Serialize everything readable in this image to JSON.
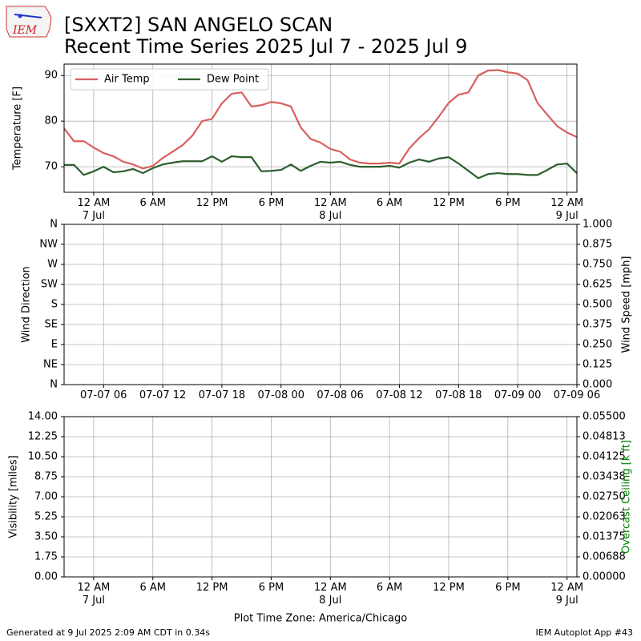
{
  "header": {
    "title_line1": "[SXXT2] SAN ANGELO SCAN",
    "title_line2": "Recent Time Series 2025 Jul 7 - 2025 Jul 9",
    "logo_text": "IEM"
  },
  "chart_data": [
    {
      "type": "line",
      "ylabel": "Temperature [F]",
      "x": [
        "2025-07-06T21:00",
        "2025-07-06T22:00",
        "2025-07-06T23:00",
        "2025-07-07T00:00",
        "2025-07-07T01:00",
        "2025-07-07T02:00",
        "2025-07-07T03:00",
        "2025-07-07T04:00",
        "2025-07-07T05:00",
        "2025-07-07T06:00",
        "2025-07-07T07:00",
        "2025-07-07T08:00",
        "2025-07-07T09:00",
        "2025-07-07T10:00",
        "2025-07-07T11:00",
        "2025-07-07T12:00",
        "2025-07-07T13:00",
        "2025-07-07T14:00",
        "2025-07-07T15:00",
        "2025-07-07T16:00",
        "2025-07-07T17:00",
        "2025-07-07T18:00",
        "2025-07-07T19:00",
        "2025-07-07T20:00",
        "2025-07-07T21:00",
        "2025-07-07T22:00",
        "2025-07-07T23:00",
        "2025-07-08T00:00",
        "2025-07-08T01:00",
        "2025-07-08T02:00",
        "2025-07-08T03:00",
        "2025-07-08T04:00",
        "2025-07-08T05:00",
        "2025-07-08T06:00",
        "2025-07-08T07:00",
        "2025-07-08T08:00",
        "2025-07-08T09:00",
        "2025-07-08T10:00",
        "2025-07-08T11:00",
        "2025-07-08T12:00",
        "2025-07-08T13:00",
        "2025-07-08T14:00",
        "2025-07-08T15:00",
        "2025-07-08T16:00",
        "2025-07-08T17:00",
        "2025-07-08T18:00",
        "2025-07-08T19:00",
        "2025-07-08T20:00",
        "2025-07-08T21:00",
        "2025-07-08T22:00",
        "2025-07-08T23:00",
        "2025-07-09T00:00",
        "2025-07-09T01:00"
      ],
      "series": [
        {
          "name": "Air Temp",
          "color": "#d95f5f",
          "values": [
            78.4,
            75.6,
            75.6,
            74.2,
            73.0,
            72.3,
            71.1,
            70.5,
            69.6,
            70.2,
            71.9,
            73.3,
            74.7,
            76.8,
            80.0,
            80.5,
            83.9,
            86.0,
            86.3,
            83.2,
            83.5,
            84.2,
            83.9,
            83.2,
            78.6,
            76.1,
            75.3,
            73.9,
            73.3,
            71.6,
            70.9,
            70.7,
            70.7,
            70.9,
            70.7,
            74.0,
            76.3,
            78.2,
            81.0,
            84.0,
            85.8,
            86.3,
            90.0,
            91.1,
            91.2,
            90.7,
            90.4,
            89.0,
            84.0,
            81.4,
            78.9,
            77.5,
            76.5
          ]
        },
        {
          "name": "Dew Point",
          "color": "#2e5e2e",
          "values": [
            70.4,
            70.4,
            68.2,
            69.0,
            70.0,
            68.8,
            69.0,
            69.5,
            68.6,
            69.7,
            70.5,
            70.9,
            71.2,
            71.2,
            71.2,
            72.3,
            71.1,
            72.3,
            72.1,
            72.1,
            69.0,
            69.1,
            69.3,
            70.5,
            69.1,
            70.2,
            71.1,
            70.9,
            71.1,
            70.4,
            70.0,
            70.0,
            70.0,
            70.2,
            69.8,
            70.9,
            71.6,
            71.1,
            71.8,
            72.1,
            70.7,
            69.1,
            67.5,
            68.4,
            68.6,
            68.4,
            68.4,
            68.2,
            68.2,
            69.3,
            70.5,
            70.7,
            68.6
          ]
        }
      ],
      "xlim": [
        "2025-07-06T21:00",
        "2025-07-09T01:00"
      ],
      "xticks": [
        {
          "value": "2025-07-07T00:00",
          "label": "12 AM\n7 Jul"
        },
        {
          "value": "2025-07-07T06:00",
          "label": "6 AM"
        },
        {
          "value": "2025-07-07T12:00",
          "label": "12 PM"
        },
        {
          "value": "2025-07-07T18:00",
          "label": "6 PM"
        },
        {
          "value": "2025-07-08T00:00",
          "label": "12 AM\n8 Jul"
        },
        {
          "value": "2025-07-08T06:00",
          "label": "6 AM"
        },
        {
          "value": "2025-07-08T12:00",
          "label": "12 PM"
        },
        {
          "value": "2025-07-08T18:00",
          "label": "6 PM"
        },
        {
          "value": "2025-07-09T00:00",
          "label": "12 AM\n9 Jul"
        }
      ],
      "ylim": [
        64.4,
        92.5
      ],
      "yticks": [
        70,
        80,
        90
      ],
      "grid": true,
      "legend": "upper left"
    },
    {
      "type": "line",
      "ylabel": "Wind Direction",
      "y2label": "Wind Speed [mph]",
      "series": [],
      "xlim": [
        "2025-07-07T02:00",
        "2025-07-09T06:00"
      ],
      "xticks": [
        {
          "value": "2025-07-07T06:00",
          "label": "07-07 06"
        },
        {
          "value": "2025-07-07T12:00",
          "label": "07-07 12"
        },
        {
          "value": "2025-07-07T18:00",
          "label": "07-07 18"
        },
        {
          "value": "2025-07-08T00:00",
          "label": "07-08 00"
        },
        {
          "value": "2025-07-08T06:00",
          "label": "07-08 06"
        },
        {
          "value": "2025-07-08T12:00",
          "label": "07-08 12"
        },
        {
          "value": "2025-07-08T18:00",
          "label": "07-08 18"
        },
        {
          "value": "2025-07-09T00:00",
          "label": "07-09 00"
        },
        {
          "value": "2025-07-09T06:00",
          "label": "07-09 06"
        }
      ],
      "ylim": [
        0,
        360
      ],
      "yticks": [
        {
          "value": 0,
          "label": "N"
        },
        {
          "value": 45,
          "label": "NE"
        },
        {
          "value": 90,
          "label": "E"
        },
        {
          "value": 135,
          "label": "SE"
        },
        {
          "value": 180,
          "label": "S"
        },
        {
          "value": 225,
          "label": "SW"
        },
        {
          "value": 270,
          "label": "W"
        },
        {
          "value": 315,
          "label": "NW"
        },
        {
          "value": 360,
          "label": "N"
        }
      ],
      "y2lim": [
        0,
        1
      ],
      "y2ticks": [
        {
          "value": 0,
          "label": "0.000"
        },
        {
          "value": 0.125,
          "label": "0.125"
        },
        {
          "value": 0.25,
          "label": "0.250"
        },
        {
          "value": 0.375,
          "label": "0.375"
        },
        {
          "value": 0.5,
          "label": "0.500"
        },
        {
          "value": 0.625,
          "label": "0.625"
        },
        {
          "value": 0.75,
          "label": "0.750"
        },
        {
          "value": 0.875,
          "label": "0.875"
        },
        {
          "value": 1,
          "label": "1.000"
        }
      ],
      "grid": true
    },
    {
      "type": "line",
      "ylabel": "Visibility [miles]",
      "y2label": "Overcast Ceiling [k ft]",
      "y2label_color": "green",
      "xlabel": "Plot Time Zone: America/Chicago",
      "series": [],
      "xlim": [
        "2025-07-06T21:00",
        "2025-07-09T01:00"
      ],
      "xticks": [
        {
          "value": "2025-07-07T00:00",
          "label": "12 AM\n7 Jul"
        },
        {
          "value": "2025-07-07T06:00",
          "label": "6 AM"
        },
        {
          "value": "2025-07-07T12:00",
          "label": "12 PM"
        },
        {
          "value": "2025-07-07T18:00",
          "label": "6 PM"
        },
        {
          "value": "2025-07-08T00:00",
          "label": "12 AM\n8 Jul"
        },
        {
          "value": "2025-07-08T06:00",
          "label": "6 AM"
        },
        {
          "value": "2025-07-08T12:00",
          "label": "12 PM"
        },
        {
          "value": "2025-07-08T18:00",
          "label": "6 PM"
        },
        {
          "value": "2025-07-09T00:00",
          "label": "12 AM\n9 Jul"
        }
      ],
      "ylim": [
        0,
        14
      ],
      "yticks": [
        {
          "value": 0,
          "label": "0.00"
        },
        {
          "value": 1.75,
          "label": "1.75"
        },
        {
          "value": 3.5,
          "label": "3.50"
        },
        {
          "value": 5.25,
          "label": "5.25"
        },
        {
          "value": 7,
          "label": "7.00"
        },
        {
          "value": 8.75,
          "label": "8.75"
        },
        {
          "value": 10.5,
          "label": "10.50"
        },
        {
          "value": 12.25,
          "label": "12.25"
        },
        {
          "value": 14,
          "label": "14.00"
        }
      ],
      "y2lim": [
        0,
        0.055
      ],
      "y2ticks": [
        {
          "value": 0,
          "label": "0.00000"
        },
        {
          "value": 0.006875,
          "label": "0.00688"
        },
        {
          "value": 0.01375,
          "label": "0.01375"
        },
        {
          "value": 0.020625,
          "label": "0.02063"
        },
        {
          "value": 0.0275,
          "label": "0.02750"
        },
        {
          "value": 0.034375,
          "label": "0.03438"
        },
        {
          "value": 0.04125,
          "label": "0.04125"
        },
        {
          "value": 0.048125,
          "label": "0.04813"
        },
        {
          "value": 0.055,
          "label": "0.05500"
        }
      ],
      "grid": true
    }
  ],
  "footer": {
    "left": "Generated at 9 Jul 2025 2:09 AM CDT in 0.34s",
    "right": "IEM Autoplot App #43"
  }
}
